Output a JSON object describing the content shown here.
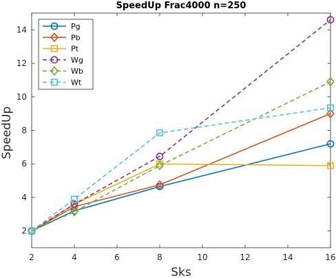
{
  "chart_data": {
    "type": "line",
    "title": "SpeedUp Frac4000 n=250",
    "xlabel": "Sks",
    "ylabel": "SpeedUp",
    "xlim": [
      2,
      16
    ],
    "ylim": [
      1,
      15
    ],
    "xticks": [
      2,
      4,
      6,
      8,
      10,
      12,
      14,
      16
    ],
    "yticks": [
      2,
      4,
      6,
      8,
      10,
      12,
      14
    ],
    "grid": false,
    "legend_position": "top-left",
    "x": [
      2,
      4,
      8,
      16
    ],
    "series": [
      {
        "name": "Pg",
        "values": [
          2.0,
          3.2,
          4.65,
          7.2
        ],
        "color": "#0072BD",
        "dash": "solid",
        "marker": "circle"
      },
      {
        "name": "Pb",
        "values": [
          2.0,
          3.45,
          4.75,
          9.0
        ],
        "color": "#D95319",
        "dash": "solid",
        "marker": "diamond"
      },
      {
        "name": "Pt",
        "values": [
          2.0,
          3.6,
          6.0,
          5.9
        ],
        "color": "#EDB120",
        "dash": "solid",
        "marker": "square"
      },
      {
        "name": "Wg",
        "values": [
          2.0,
          3.6,
          6.45,
          14.6
        ],
        "color": "#7E2F8E",
        "dash": "dashed",
        "marker": "circle"
      },
      {
        "name": "Wb",
        "values": [
          2.0,
          3.15,
          5.9,
          10.9
        ],
        "color": "#77AC30",
        "dash": "dashed",
        "marker": "diamond"
      },
      {
        "name": "Wt",
        "values": [
          2.0,
          3.9,
          7.85,
          9.35
        ],
        "color": "#4DBEEE",
        "dash": "dashed",
        "marker": "square"
      }
    ]
  }
}
